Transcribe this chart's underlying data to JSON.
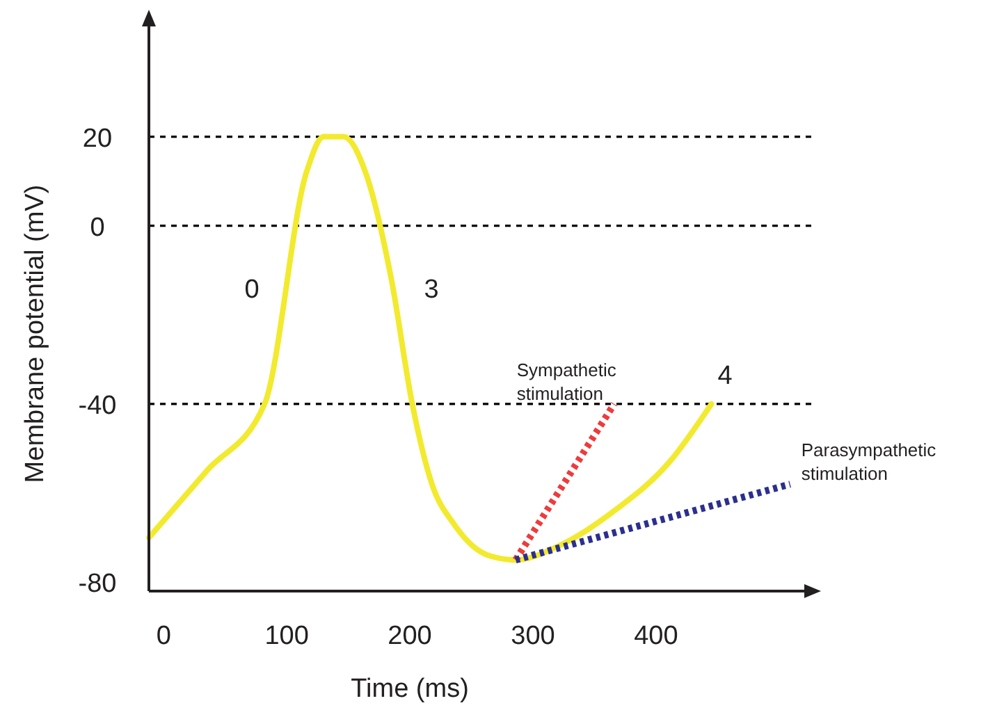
{
  "chart_data": {
    "type": "line",
    "xlabel": "Time (ms)",
    "ylabel": "Membrane potential (mV)",
    "xlim": [
      -12,
      525
    ],
    "ylim": [
      -82,
      46
    ],
    "xticks": [
      0,
      100,
      200,
      300,
      400
    ],
    "yticks": [
      20,
      0,
      -40,
      -80
    ],
    "grid": false,
    "marker": "none",
    "series": [
      {
        "color": "#f2ea2e",
        "line_style": "solid",
        "x": [
          -12,
          35,
          82,
          116,
          130,
          146,
          164,
          185,
          202,
          218,
          236,
          264,
          286,
          320,
          366,
          411,
          445
        ],
        "values": [
          -70,
          -55,
          -40,
          12,
          20,
          20,
          12,
          -12,
          -40,
          -58,
          -67,
          -74,
          -75,
          -72,
          -64,
          -53,
          -40
        ]
      },
      {
        "name": "Sympathetic stimulation",
        "color": "#ee3b3b",
        "line_style": "dotted",
        "x": [
          286,
          366
        ],
        "values": [
          -75,
          -40
        ]
      },
      {
        "name": "Parasympathetic stimulation",
        "color": "#2b2f8f",
        "line_style": "dotted",
        "x": [
          286,
          509
        ],
        "values": [
          -75,
          -58
        ]
      }
    ],
    "ref_lines": [
      {
        "axis": "y",
        "value": 20,
        "color": "#000000",
        "line_style": "dashed"
      },
      {
        "axis": "y",
        "value": 0,
        "color": "#000000",
        "line_style": "dashed"
      },
      {
        "axis": "y",
        "value": -40,
        "color": "#000000",
        "line_style": "dashed"
      }
    ],
    "annotations": [
      "0",
      "3",
      "4"
    ]
  }
}
